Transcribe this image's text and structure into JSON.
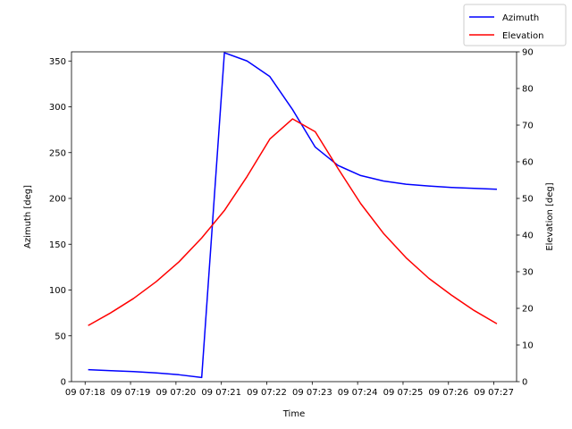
{
  "chart_data": {
    "type": "line",
    "xlabel": "Time",
    "ylabel_left": "Azimuth [deg]",
    "ylabel_right": "Elevation [deg]",
    "x_ticks": [
      "09 07:18",
      "09 07:19",
      "09 07:20",
      "09 07:21",
      "09 07:22",
      "09 07:23",
      "09 07:24",
      "09 07:25",
      "09 07:26",
      "09 07:27"
    ],
    "x": [
      "07:18:04",
      "07:18:34",
      "07:19:04",
      "07:19:34",
      "07:20:04",
      "07:20:34",
      "07:21:04",
      "07:21:34",
      "07:22:04",
      "07:22:34",
      "07:23:04",
      "07:23:34",
      "07:24:04",
      "07:24:34",
      "07:25:04",
      "07:25:34",
      "07:26:04",
      "07:26:34",
      "07:27:04"
    ],
    "xlim": [
      "07:17:42",
      "07:27:30"
    ],
    "y_left_lim": [
      0,
      360
    ],
    "y_left_ticks": [
      0,
      50,
      100,
      150,
      200,
      250,
      300,
      350
    ],
    "y_right_lim": [
      0,
      90
    ],
    "y_right_ticks": [
      0,
      10,
      20,
      30,
      40,
      50,
      60,
      70,
      80,
      90
    ],
    "legend_position": "top-right",
    "series": [
      {
        "name": "Azimuth",
        "axis": "left",
        "color": "#0000ff",
        "x": [
          "07:18:04",
          "07:18:34",
          "07:19:04",
          "07:19:34",
          "07:20:04",
          "07:20:34",
          "07:21:04",
          "07:21:34",
          "07:22:04",
          "07:22:34",
          "07:23:04",
          "07:23:34",
          "07:24:04",
          "07:24:34",
          "07:25:04",
          "07:25:34",
          "07:26:04",
          "07:26:34",
          "07:27:04"
        ],
        "values": [
          13,
          12,
          11,
          9.5,
          7.5,
          4.5,
          359,
          350,
          333,
          297,
          256,
          236,
          225,
          219,
          215.5,
          213.5,
          212,
          211,
          210
        ]
      },
      {
        "name": "Elevation",
        "axis": "right",
        "color": "#ff0000",
        "x": [
          "07:18:04",
          "07:18:34",
          "07:19:04",
          "07:19:34",
          "07:20:04",
          "07:20:34",
          "07:21:04",
          "07:21:34",
          "07:22:04",
          "07:22:34",
          "07:23:04",
          "07:23:34",
          "07:24:04",
          "07:24:34",
          "07:25:04",
          "07:25:34",
          "07:26:04",
          "07:26:34",
          "07:27:04"
        ],
        "values": [
          15.3,
          18.8,
          22.7,
          27.3,
          32.7,
          39.2,
          46.7,
          56,
          66.2,
          71.7,
          68.2,
          58.2,
          48.6,
          40.5,
          33.8,
          28.2,
          23.6,
          19.4,
          15.8
        ]
      }
    ]
  }
}
